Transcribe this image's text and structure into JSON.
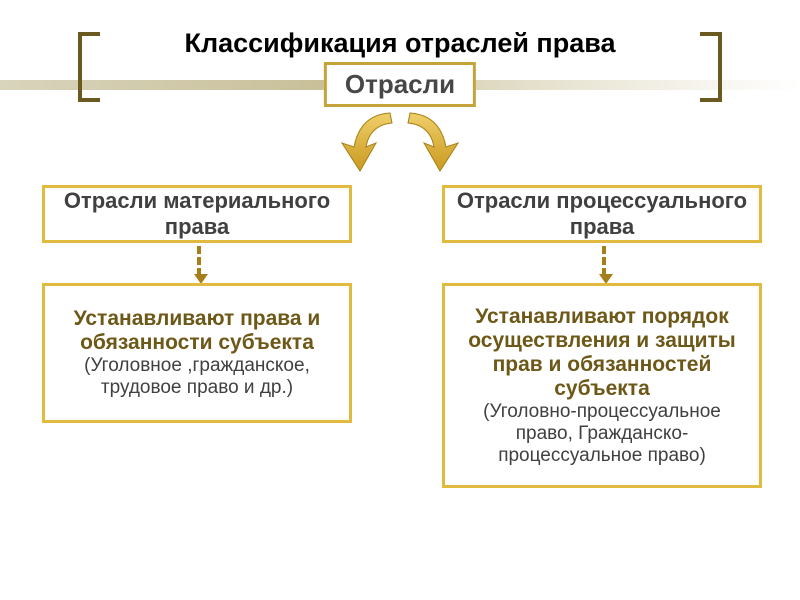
{
  "title": {
    "text": "Классификация отраслей права",
    "fontsize": 27
  },
  "root": {
    "label": "Отрасли",
    "fontsize": 26,
    "border_color": "#c4a43a",
    "text_color": "#474747"
  },
  "branch_box": {
    "border_color": "#e0bb3f",
    "text_color": "#404040",
    "fontsize": 22
  },
  "desc_box": {
    "border_color": "#e0bb3f",
    "bold_color": "#6d5818",
    "sub_color": "#404040",
    "bold_fontsize": 21,
    "sub_fontsize": 19
  },
  "arrow": {
    "fill": "#dcae2c",
    "stroke": "#a67f15"
  },
  "dash": {
    "color": "#a77f1a"
  },
  "left": {
    "branch": "Отрасли материального права",
    "desc_bold": "Устанавливают права и обязанности субъекта",
    "desc_sub": "(Уголовное ,гражданское, трудовое право и др.)"
  },
  "right": {
    "branch": "Отрасли процессуального права",
    "desc_bold": "Устанавливают порядок осуществления и защиты прав и обязанностей субъекта",
    "desc_sub": "(Уголовно-процессуальное право, Гражданско-процессуальное право)"
  }
}
